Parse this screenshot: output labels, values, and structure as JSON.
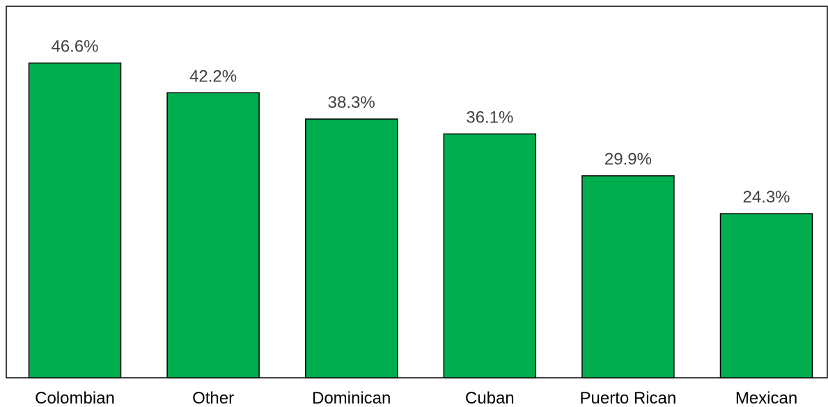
{
  "chart_data": {
    "type": "bar",
    "categories": [
      "Colombian",
      "Other",
      "Dominican",
      "Cuban",
      "Puerto Rican",
      "Mexican"
    ],
    "values": [
      46.6,
      42.2,
      38.3,
      36.1,
      29.9,
      24.3
    ],
    "value_labels": [
      "46.6%",
      "42.2%",
      "38.3%",
      "36.1%",
      "29.9%",
      "24.3%"
    ],
    "title": "",
    "xlabel": "",
    "ylabel": "",
    "ylim": [
      0,
      55
    ],
    "grid": false,
    "legend": "none",
    "colors": {
      "bar": "#00AD4F",
      "border": "#000000",
      "value_text": "#404040",
      "category_text": "#000000"
    }
  }
}
